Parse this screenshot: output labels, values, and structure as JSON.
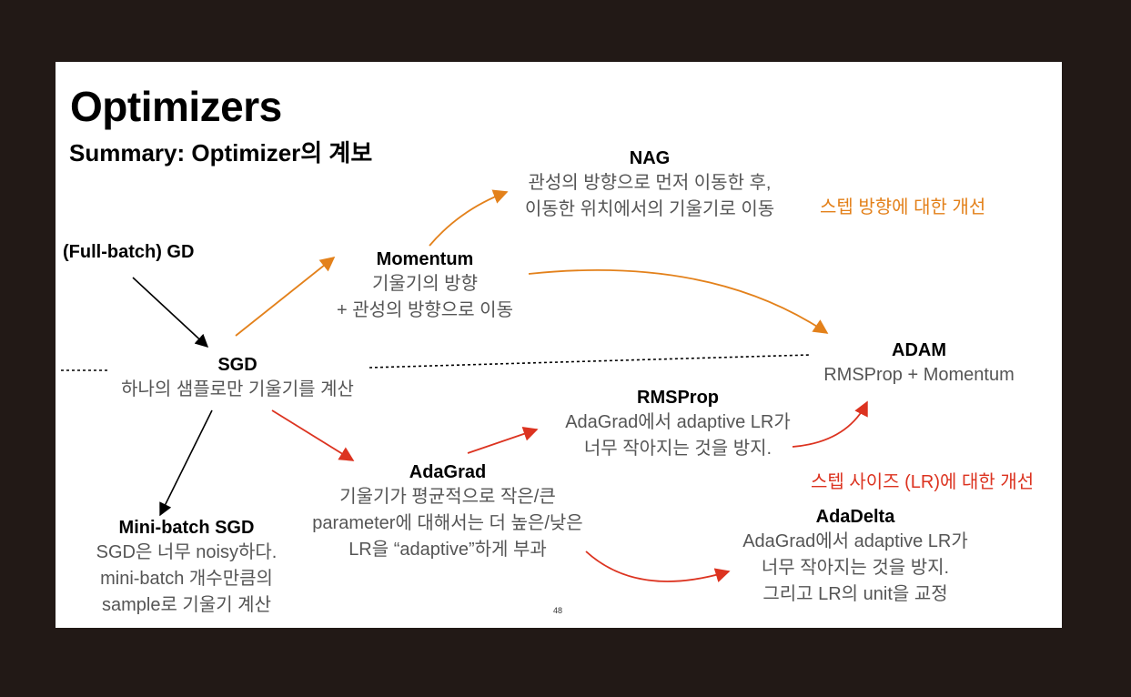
{
  "title": "Optimizers",
  "subtitle": "Summary: Optimizer의 계보",
  "page_number": "48",
  "colors": {
    "background": "#221916",
    "slide": "#ffffff",
    "orange": "#e3811b",
    "red": "#dc3320",
    "black": "#000000",
    "gray_text": "#555555"
  },
  "nodes": {
    "gd": {
      "name": "(Full-batch) GD"
    },
    "sgd": {
      "name": "SGD",
      "desc": [
        "하나의 샘플로만 기울기를 계산"
      ]
    },
    "momentum": {
      "name": "Momentum",
      "desc": [
        "기울기의 방향",
        "+ 관성의 방향으로 이동"
      ]
    },
    "nag": {
      "name": "NAG",
      "desc": [
        "관성의 방향으로 먼저 이동한 후,",
        "이동한 위치에서의 기울기로 이동"
      ]
    },
    "adam": {
      "name": "ADAM",
      "desc": [
        "RMSProp + Momentum"
      ]
    },
    "rmsprop": {
      "name": "RMSProp",
      "desc": [
        "AdaGrad에서 adaptive LR가",
        "너무 작아지는 것을 방지."
      ]
    },
    "adagrad": {
      "name": "AdaGrad",
      "desc": [
        "기울기가 평균적으로 작은/큰",
        "parameter에 대해서는 더 높은/낮은",
        "LR을 “adaptive”하게 부과"
      ]
    },
    "adadelta": {
      "name": "AdaDelta",
      "desc": [
        "AdaGrad에서 adaptive LR가",
        "너무 작아지는 것을 방지.",
        "그리고 LR의 unit을 교정"
      ]
    },
    "minibatch": {
      "name": "Mini-batch SGD",
      "desc": [
        "SGD은 너무 noisy하다.",
        "mini-batch 개수만큼의",
        "sample로 기울기 계산"
      ]
    }
  },
  "notes": {
    "direction": "스텝 방향에 대한 개선",
    "step_size": "스텝 사이즈 (LR)에 대한 개선"
  }
}
